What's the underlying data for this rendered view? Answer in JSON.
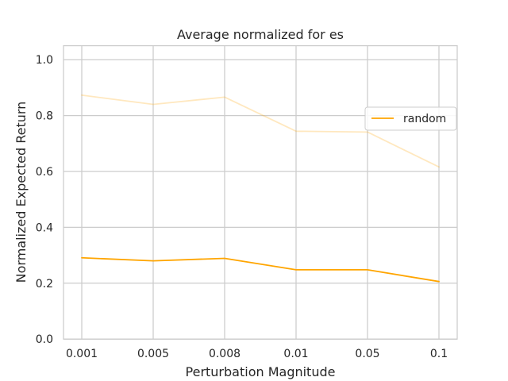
{
  "chart_data": {
    "type": "line",
    "title": "Average normalized for es",
    "xlabel": "Perturbation Magnitude",
    "ylabel": "Normalized Expected Return",
    "categories": [
      "0.001",
      "0.005",
      "0.008",
      "0.01",
      "0.05",
      "0.1"
    ],
    "ylim": [
      0.0,
      1.05
    ],
    "yticks": [
      "0.0",
      "0.2",
      "0.4",
      "0.6",
      "0.8",
      "1.0"
    ],
    "grid": true,
    "legend_position": "center-right",
    "series": [
      {
        "name": "random",
        "values": [
          0.291,
          0.28,
          0.289,
          0.248,
          0.248,
          0.206
        ],
        "color": "#ffa500",
        "in_legend": true
      },
      {
        "name": "",
        "values": [
          0.873,
          0.84,
          0.866,
          0.744,
          0.741,
          0.616
        ],
        "color": "#ffa500",
        "opacity": 0.25,
        "in_legend": false
      }
    ]
  }
}
